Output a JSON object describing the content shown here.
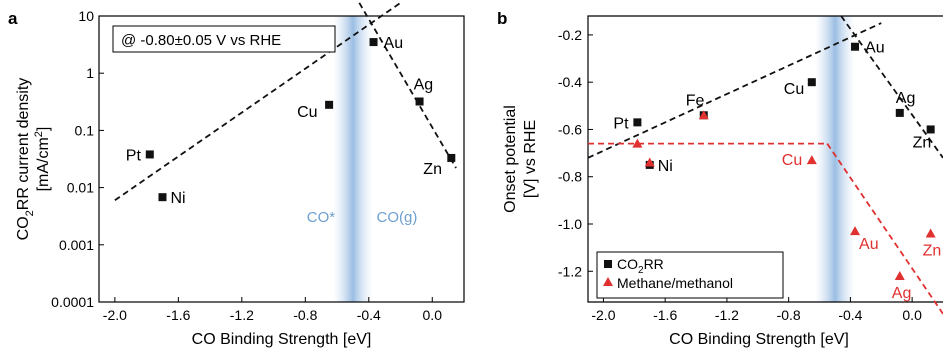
{
  "chart_data": [
    {
      "type": "scatter",
      "panel": "a",
      "xlabel": "CO Binding Strength [eV]",
      "ylabel_line1": "CO",
      "ylabel_sub": "2",
      "ylabel_line1_rest": "RR current density",
      "ylabel_line2": "[mA/cm",
      "ylabel_line2_sup": "2",
      "ylabel_line2_end": "]",
      "yscale": "log",
      "xlim": [
        -2.1,
        0.2
      ],
      "ylim": [
        0.0001,
        10
      ],
      "xticks": [
        -2.0,
        -1.6,
        -1.2,
        -0.8,
        -0.4,
        0.0
      ],
      "xtick_labels": [
        "-2.0",
        "-1.6",
        "-1.2",
        "-0.8",
        "-0.4",
        "0.0"
      ],
      "yticks": [
        0.0001,
        0.001,
        0.01,
        0.1,
        1,
        10
      ],
      "ytick_labels": [
        "0.0001",
        "0.001",
        "0.01",
        "0.1",
        "1",
        "10"
      ],
      "annotation": "@ -0.80±0.05 V vs RHE",
      "region_labels": [
        "CO*",
        "CO(g)"
      ],
      "band_center_x": -0.5,
      "series": [
        {
          "marker": "square",
          "color": "#111111",
          "points": [
            {
              "label": "Pt",
              "x": -1.78,
              "y": 0.038
            },
            {
              "label": "Ni",
              "x": -1.7,
              "y": 0.0068
            },
            {
              "label": "Cu",
              "x": -0.65,
              "y": 0.28
            },
            {
              "label": "Au",
              "x": -0.37,
              "y": 3.5
            },
            {
              "label": "Ag",
              "x": -0.08,
              "y": 0.32
            },
            {
              "label": "Zn",
              "x": 0.12,
              "y": 0.033
            }
          ]
        }
      ],
      "fit_lines": [
        {
          "x": [
            -2.0,
            -0.2
          ],
          "y": [
            0.006,
            17
          ]
        },
        {
          "x": [
            -0.46,
            0.15
          ],
          "y": [
            17,
            0.022
          ]
        }
      ]
    },
    {
      "type": "scatter",
      "panel": "b",
      "xlabel": "CO Binding Strength [eV]",
      "ylabel_line1": "Onset potential",
      "ylabel_line2": "[V] vs RHE",
      "xlim": [
        -2.1,
        0.2
      ],
      "ylim": [
        -1.33,
        -0.12
      ],
      "xticks": [
        -2.0,
        -1.6,
        -1.2,
        -0.8,
        -0.4,
        0.0
      ],
      "xtick_labels": [
        "-2.0",
        "-1.6",
        "-1.2",
        "-0.8",
        "-0.4",
        "0.0"
      ],
      "yticks": [
        -1.2,
        -1.0,
        -0.8,
        -0.6,
        -0.4,
        -0.2
      ],
      "ytick_labels": [
        "-1.2",
        "-1.0",
        "-0.8",
        "-0.6",
        "-0.4",
        "-0.2"
      ],
      "band_center_x": -0.5,
      "series": [
        {
          "name_main": "CO",
          "name_sub": "2",
          "name_rest": "RR",
          "marker": "square",
          "color": "#111111",
          "points": [
            {
              "label": "Pt",
              "x": -1.78,
              "y": -0.57
            },
            {
              "label": "Fe",
              "x": -1.35,
              "y": -0.54
            },
            {
              "label": "Ni",
              "x": -1.7,
              "y": -0.75
            },
            {
              "label": "Cu",
              "x": -0.65,
              "y": -0.4
            },
            {
              "label": "Au",
              "x": -0.37,
              "y": -0.25
            },
            {
              "label": "Ag",
              "x": -0.08,
              "y": -0.53
            },
            {
              "label": "Zn",
              "x": 0.12,
              "y": -0.6
            }
          ]
        },
        {
          "name": "Methane/methanol",
          "marker": "triangle",
          "color": "#e03030",
          "points": [
            {
              "label": "Cu",
              "x": -0.65,
              "y": -0.73
            },
            {
              "label": "Au",
              "x": -0.37,
              "y": -1.03
            },
            {
              "label": "Zn",
              "x": 0.12,
              "y": -1.04
            },
            {
              "label": "Ag",
              "x": -0.08,
              "y": -1.22
            },
            {
              "label": "Pt",
              "x": -1.78,
              "y": -0.66
            },
            {
              "label": "Fe",
              "x": -1.35,
              "y": -0.54
            },
            {
              "label": "Ni",
              "x": -1.7,
              "y": -0.74
            }
          ]
        }
      ],
      "fit_lines": [
        {
          "x": [
            -2.1,
            -0.2
          ],
          "y": [
            -0.72,
            -0.15
          ],
          "color": "#111111"
        },
        {
          "x": [
            -0.46,
            0.2
          ],
          "y": [
            -0.12,
            -0.72
          ],
          "color": "#111111"
        },
        {
          "x": [
            -2.1,
            -0.55
          ],
          "y": [
            -0.66,
            -0.66
          ],
          "color": "#e03030"
        },
        {
          "x": [
            -0.55,
            0.2
          ],
          "y": [
            -0.66,
            -1.38
          ],
          "color": "#e03030"
        }
      ]
    }
  ],
  "panel_letters": [
    "a",
    "b"
  ]
}
